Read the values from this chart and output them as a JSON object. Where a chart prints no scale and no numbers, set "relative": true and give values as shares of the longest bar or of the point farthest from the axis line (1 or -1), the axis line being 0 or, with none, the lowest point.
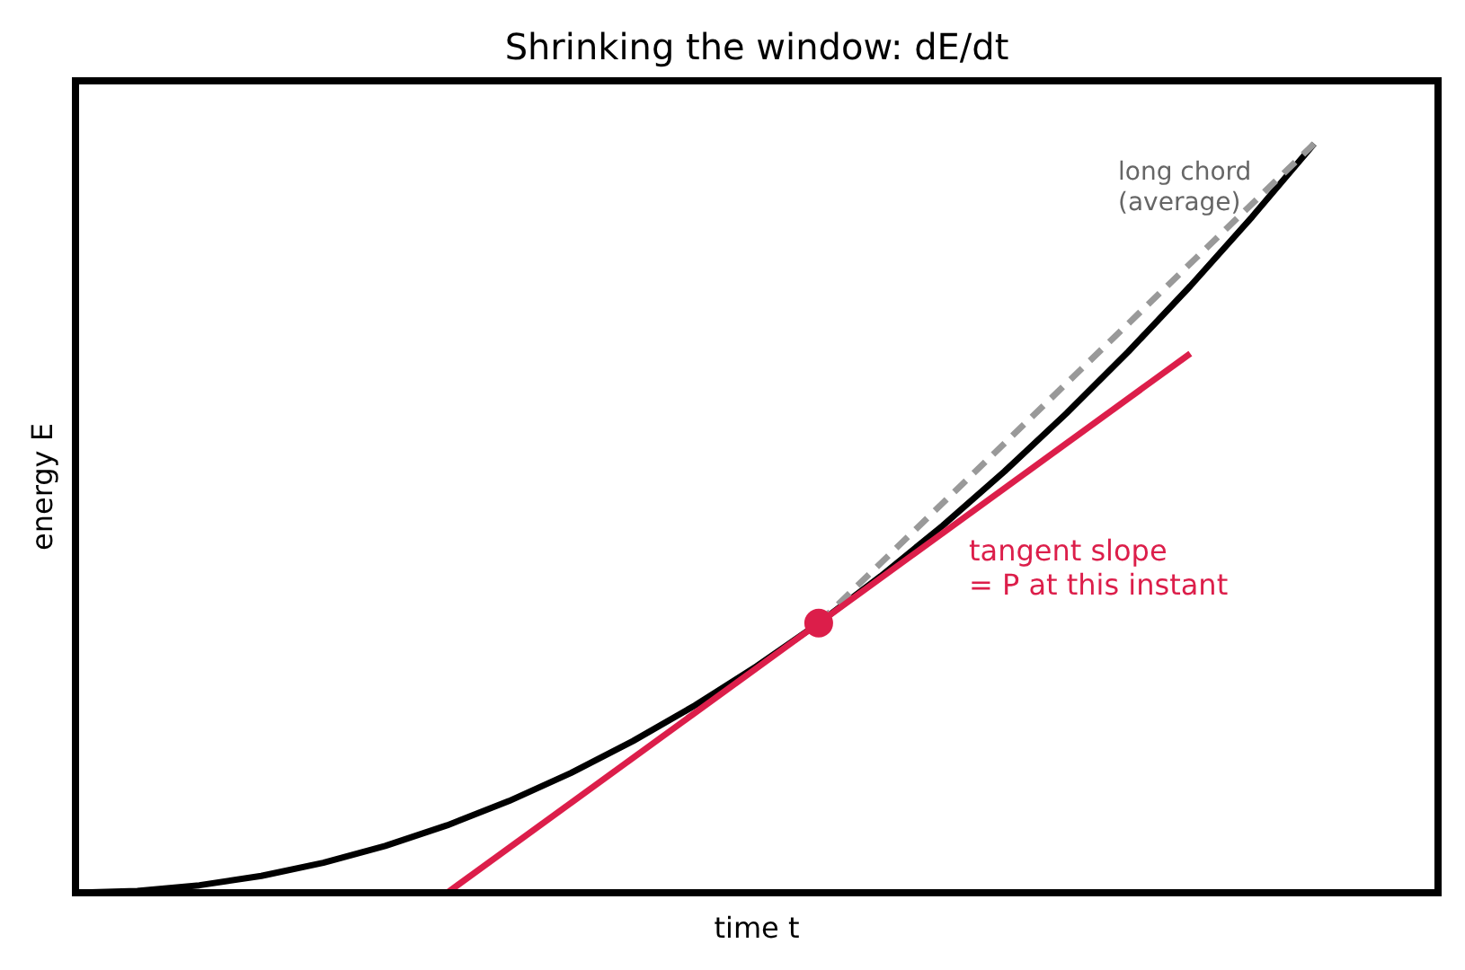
{
  "chart_data": {
    "type": "line",
    "title": "Shrinking the window: dE/dt",
    "xlabel": "time t",
    "ylabel": "energy E",
    "relative": true,
    "categories": [
      null,
      null,
      null,
      null,
      null,
      null,
      null,
      null,
      null,
      null,
      null,
      null,
      null,
      null,
      null,
      null,
      null,
      null,
      null,
      null,
      null,
      null,
      null
    ],
    "series": [
      {
        "color": "#000000",
        "line_style": "solid",
        "values": [
          0,
          0.0025,
          0.01,
          0.0225,
          0.04,
          0.0625,
          0.09,
          0.1225,
          0.16,
          0.2025,
          0.25,
          0.3025,
          0.36,
          0.4225,
          0.49,
          0.5625,
          0.64,
          0.7225,
          0.81,
          0.9025,
          1.0,
          null,
          null
        ]
      },
      {
        "color": "#999999",
        "line_style": "dashed",
        "values": [
          null,
          null,
          null,
          null,
          null,
          null,
          null,
          null,
          null,
          null,
          null,
          null,
          0.36,
          null,
          null,
          null,
          null,
          null,
          null,
          null,
          1.0,
          null,
          null
        ]
      },
      {
        "color": "#dc1e4a",
        "line_style": "solid",
        "values": [
          null,
          null,
          null,
          null,
          null,
          null,
          0,
          null,
          null,
          null,
          null,
          null,
          null,
          null,
          null,
          null,
          null,
          null,
          0.72,
          null,
          null,
          null,
          null
        ]
      },
      {
        "color": "#dc1e4a",
        "marker": "circle",
        "values": [
          null,
          null,
          null,
          null,
          null,
          null,
          null,
          null,
          null,
          null,
          null,
          null,
          0.36,
          null,
          null,
          null,
          null,
          null,
          null,
          null,
          null,
          null,
          null
        ]
      }
    ],
    "annotations": [
      "long chord\n(average)",
      "tangent slope\n= P at this instant"
    ]
  }
}
